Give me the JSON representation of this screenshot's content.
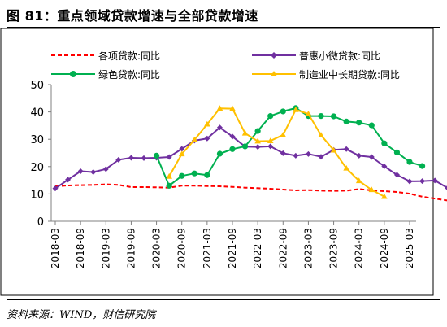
{
  "figure": {
    "title": "图 81：重点领域贷款增速与全部贷款增速",
    "source": "资料来源：WIND，财信研究院"
  },
  "colors": {
    "all_loans": "#ff0000",
    "inclusive": "#7030a0",
    "green": "#00b050",
    "manufacturing": "#ffc000"
  },
  "chart_data": {
    "type": "line",
    "title": "",
    "xlabel": "",
    "ylabel": "",
    "ylim": [
      0,
      50
    ],
    "yticks": [
      "0",
      "10",
      "20",
      "30",
      "40",
      "50"
    ],
    "x_labels": [
      "2018-03",
      "2018-09",
      "2019-03",
      "2019-09",
      "2020-03",
      "2020-09",
      "2021-03",
      "2021-09",
      "2022-03",
      "2022-09",
      "2023-03",
      "2023-09",
      "2024-03",
      "2024-09",
      "2025-03"
    ],
    "grid": false,
    "legend_position": "top",
    "series": [
      {
        "name": "各项贷款:同比",
        "style": "dashed",
        "color": "#ff0000",
        "marker": "none",
        "points": [
          [
            0,
            12.8
          ],
          [
            1,
            13.1
          ],
          [
            2,
            13.2
          ],
          [
            3,
            13.3
          ],
          [
            4,
            13.5
          ],
          [
            5,
            13.3
          ],
          [
            6,
            12.5
          ],
          [
            7,
            12.5
          ],
          [
            8,
            12.4
          ],
          [
            9,
            12.3
          ],
          [
            10,
            13.0
          ],
          [
            11,
            13.0
          ],
          [
            12,
            12.9
          ],
          [
            13,
            12.8
          ],
          [
            14,
            12.6
          ],
          [
            15,
            12.3
          ],
          [
            16,
            12.1
          ],
          [
            17,
            11.9
          ],
          [
            18,
            11.6
          ],
          [
            19,
            11.3
          ],
          [
            20,
            11.4
          ],
          [
            21,
            11.2
          ],
          [
            22,
            11.1
          ],
          [
            23,
            11.2
          ],
          [
            24,
            11.8
          ],
          [
            25,
            11.3
          ],
          [
            26,
            11.0
          ],
          [
            27,
            10.7
          ],
          [
            28,
            10.1
          ],
          [
            29,
            9.0
          ],
          [
            30,
            8.3
          ],
          [
            31,
            7.6
          ],
          [
            32,
            7.4
          ],
          [
            33,
            7.2
          ]
        ]
      },
      {
        "name": "普惠小微贷款:同比",
        "style": "solid",
        "color": "#7030a0",
        "marker": "diamond",
        "points": [
          [
            0,
            12.0
          ],
          [
            1,
            15.2
          ],
          [
            2,
            18.3
          ],
          [
            3,
            18.0
          ],
          [
            4,
            19.1
          ],
          [
            5,
            22.5
          ],
          [
            6,
            23.2
          ],
          [
            7,
            23.1
          ],
          [
            8,
            23.2
          ],
          [
            9,
            23.5
          ],
          [
            10,
            26.5
          ],
          [
            11,
            29.5
          ],
          [
            12,
            30.3
          ],
          [
            13,
            34.3
          ],
          [
            14,
            31.0
          ],
          [
            15,
            27.3
          ],
          [
            16,
            27.2
          ],
          [
            17,
            27.4
          ],
          [
            18,
            24.9
          ],
          [
            19,
            24.0
          ],
          [
            20,
            24.6
          ],
          [
            21,
            23.6
          ],
          [
            22,
            26.1
          ],
          [
            23,
            26.4
          ],
          [
            24,
            24.0
          ],
          [
            25,
            23.5
          ],
          [
            26,
            20.1
          ],
          [
            27,
            17.0
          ],
          [
            28,
            14.6
          ],
          [
            29,
            14.7
          ],
          [
            30,
            14.9
          ],
          [
            31,
            12.2
          ]
        ]
      },
      {
        "name": "绿色贷款:同比",
        "style": "solid",
        "color": "#00b050",
        "marker": "circle",
        "points": [
          [
            8,
            24.0
          ],
          [
            9,
            13.0
          ],
          [
            10,
            16.6
          ],
          [
            11,
            17.5
          ],
          [
            12,
            16.9
          ],
          [
            13,
            24.7
          ],
          [
            14,
            26.4
          ],
          [
            15,
            27.4
          ],
          [
            16,
            33.0
          ],
          [
            17,
            38.5
          ],
          [
            18,
            40.2
          ],
          [
            19,
            41.4
          ],
          [
            20,
            38.5
          ],
          [
            21,
            38.5
          ],
          [
            22,
            38.4
          ],
          [
            23,
            36.5
          ],
          [
            24,
            36.1
          ],
          [
            25,
            35.1
          ],
          [
            26,
            28.5
          ],
          [
            27,
            25.2
          ],
          [
            28,
            21.7
          ],
          [
            29,
            20.2
          ]
        ]
      },
      {
        "name": "制造业中长期贷款:同比",
        "style": "solid",
        "color": "#ffc000",
        "marker": "triangle",
        "points": [
          [
            9,
            16.4
          ],
          [
            10,
            24.6
          ],
          [
            11,
            29.8
          ],
          [
            12,
            35.5
          ],
          [
            13,
            41.3
          ],
          [
            14,
            41.2
          ],
          [
            15,
            32.2
          ],
          [
            16,
            29.3
          ],
          [
            17,
            29.4
          ],
          [
            18,
            31.6
          ],
          [
            19,
            40.8
          ],
          [
            20,
            39.3
          ],
          [
            21,
            31.5
          ],
          [
            22,
            26.0
          ],
          [
            23,
            19.4
          ],
          [
            24,
            14.8
          ],
          [
            25,
            11.5
          ],
          [
            26,
            9.0
          ]
        ]
      }
    ]
  }
}
